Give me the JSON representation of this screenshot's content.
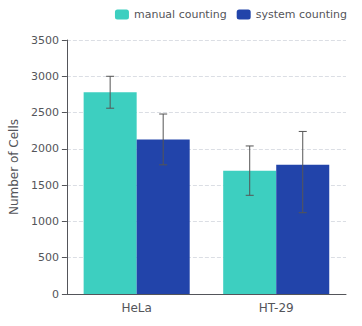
{
  "chart_data": {
    "type": "bar",
    "categories": [
      "HeLa",
      "HT-29"
    ],
    "series": [
      {
        "name": "manual counting",
        "color": "#3DCFC0",
        "values": [
          2780,
          1700
        ],
        "errors_up": [
          220,
          340
        ],
        "errors_down": [
          220,
          340
        ]
      },
      {
        "name": "system counting",
        "color": "#2244AA",
        "values": [
          2130,
          1780
        ],
        "errors_up": [
          350,
          460
        ],
        "errors_down": [
          350,
          660
        ]
      }
    ],
    "ylabel": "Number of Cells",
    "ylim": [
      0,
      3500
    ],
    "yticks": [
      0,
      500,
      1000,
      1500,
      2000,
      2500,
      3000,
      3500
    ],
    "grid": true,
    "legend": "upper right"
  }
}
